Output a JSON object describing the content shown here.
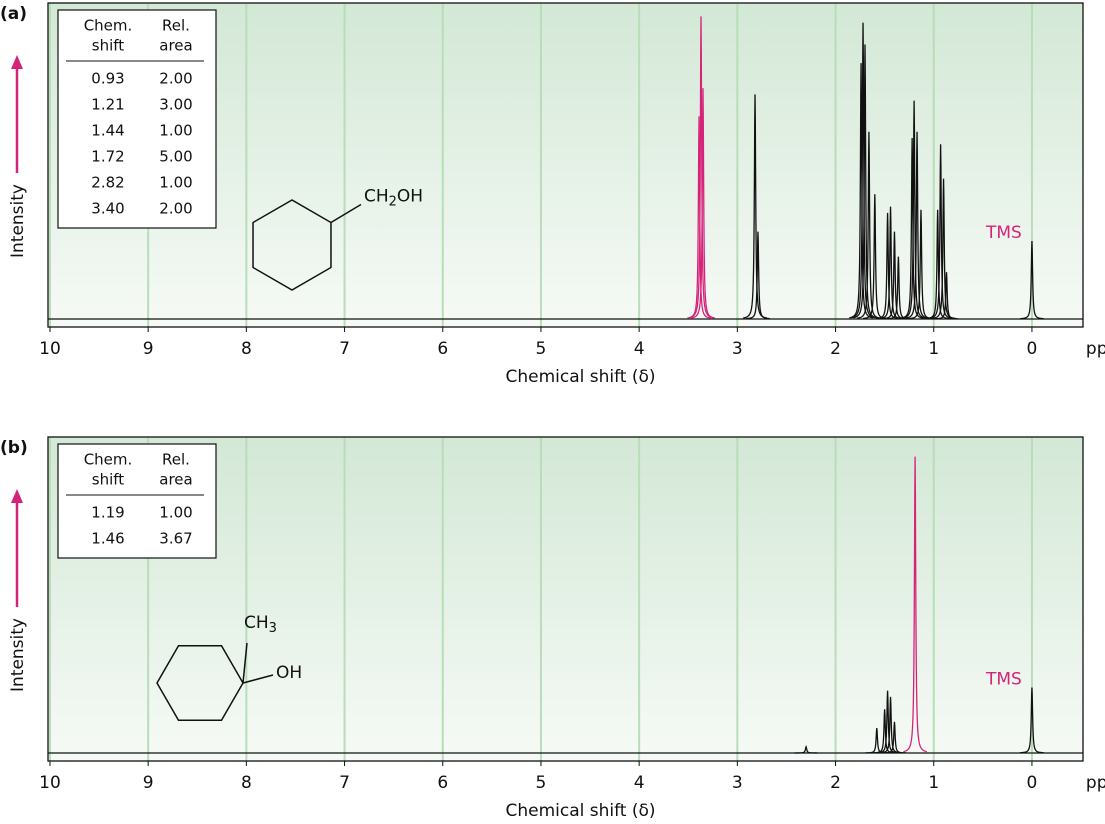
{
  "chart_data": [
    {
      "type": "nmr",
      "panel_label": "(a)",
      "ylabel": "Intensity",
      "xlabel": "Chemical shift (δ)",
      "x_unit": "ppm",
      "xlim": [
        10.02,
        -0.52
      ],
      "xticks": [
        10,
        9,
        8,
        7,
        6,
        5,
        4,
        3,
        2,
        1,
        0
      ],
      "ylim": [
        0,
        100
      ],
      "grid": true,
      "grid_color": "#b9dcb9",
      "arrow_color": "#d6237a",
      "table": {
        "columns": [
          [
            "Chem.",
            "shift"
          ],
          [
            "Rel.",
            "area"
          ]
        ],
        "rows": [
          [
            "0.93",
            "2.00"
          ],
          [
            "1.21",
            "3.00"
          ],
          [
            "1.44",
            "1.00"
          ],
          [
            "1.72",
            "5.00"
          ],
          [
            "2.82",
            "1.00"
          ],
          [
            "3.40",
            "2.00"
          ]
        ]
      },
      "molecule_labels": [
        [
          "CH",
          "2",
          "OH"
        ]
      ],
      "annotations": [
        {
          "text": "TMS",
          "x": 0,
          "color": "#d6237a"
        }
      ],
      "x": [
        3.39,
        3.37,
        3.35,
        2.82,
        2.79,
        1.74,
        1.72,
        1.7,
        1.66,
        1.6,
        1.47,
        1.44,
        1.4,
        1.36,
        1.22,
        1.2,
        1.17,
        1.13,
        0.96,
        0.93,
        0.9,
        0.87,
        0.0
      ],
      "values": [
        65,
        97,
        74,
        72,
        28,
        82,
        95,
        88,
        60,
        40,
        34,
        36,
        28,
        20,
        58,
        70,
        60,
        35,
        35,
        56,
        45,
        15,
        25
      ],
      "colors": [
        "#d6237a",
        "#d6237a",
        "#d6237a",
        "#111",
        "#111",
        "#111",
        "#111",
        "#111",
        "#111",
        "#111",
        "#111",
        "#111",
        "#111",
        "#111",
        "#111",
        "#111",
        "#111",
        "#111",
        "#111",
        "#111",
        "#111",
        "#111",
        "#111"
      ]
    },
    {
      "type": "nmr",
      "panel_label": "(b)",
      "ylabel": "Intensity",
      "xlabel": "Chemical shift (δ)",
      "x_unit": "ppm",
      "xlim": [
        10.02,
        -0.52
      ],
      "xticks": [
        10,
        9,
        8,
        7,
        6,
        5,
        4,
        3,
        2,
        1,
        0
      ],
      "ylim": [
        0,
        100
      ],
      "grid": true,
      "grid_color": "#b9dcb9",
      "arrow_color": "#d6237a",
      "table": {
        "columns": [
          [
            "Chem.",
            "shift"
          ],
          [
            "Rel.",
            "area"
          ]
        ],
        "rows": [
          [
            "1.19",
            "1.00"
          ],
          [
            "1.46",
            "3.67"
          ]
        ]
      },
      "molecule_labels": [
        [
          "CH",
          "3",
          ""
        ],
        [
          "OH",
          "",
          ""
        ]
      ],
      "annotations": [
        {
          "text": "TMS",
          "x": 0,
          "color": "#d6237a"
        }
      ],
      "x": [
        2.3,
        1.58,
        1.5,
        1.47,
        1.44,
        1.4,
        1.19,
        0.0
      ],
      "values": [
        2,
        8,
        14,
        20,
        18,
        10,
        95,
        21
      ],
      "colors": [
        "#111",
        "#111",
        "#111",
        "#111",
        "#111",
        "#111",
        "#d6237a",
        "#111"
      ]
    }
  ]
}
